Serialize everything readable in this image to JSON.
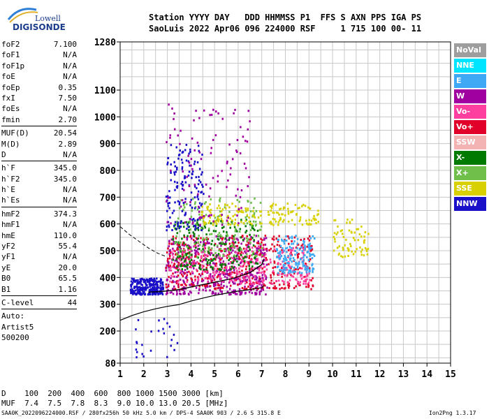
{
  "logo": {
    "line1": "Lowell",
    "line2": "DIGISONDE"
  },
  "header": {
    "labels": [
      "Station",
      "YYYY",
      "DAY",
      "DDD",
      "HHMMSS",
      "P1",
      "FFS",
      "S",
      "AXN",
      "PPS",
      "IGA",
      "PS"
    ],
    "values": [
      "SaoLuis",
      "2022",
      "Apr06",
      "096",
      "224000",
      "RSF",
      "",
      "1",
      "715",
      "100",
      "00-",
      "11"
    ]
  },
  "params": [
    {
      "name": "foF2",
      "value": "7.100"
    },
    {
      "name": "foF1",
      "value": "N/A"
    },
    {
      "name": "foF1p",
      "value": "N/A"
    },
    {
      "name": "foE",
      "value": "N/A"
    },
    {
      "name": "foEp",
      "value": "0.35"
    },
    {
      "name": "fxI",
      "value": "7.50"
    },
    {
      "name": "foEs",
      "value": "N/A"
    },
    {
      "name": "fmin",
      "value": "2.70"
    },
    {
      "sep": true
    },
    {
      "name": "MUF(D)",
      "value": "20.54"
    },
    {
      "name": "M(D)",
      "value": "2.89"
    },
    {
      "name": "D",
      "value": "N/A"
    },
    {
      "sep": true
    },
    {
      "name": "h`F",
      "value": "345.0"
    },
    {
      "name": "h`F2",
      "value": "345.0"
    },
    {
      "name": "h`E",
      "value": "N/A"
    },
    {
      "name": "h`Es",
      "value": "N/A"
    },
    {
      "sep": true
    },
    {
      "name": "hmF2",
      "value": "374.3"
    },
    {
      "name": "hmF1",
      "value": "N/A"
    },
    {
      "name": "hmE",
      "value": "110.0"
    },
    {
      "name": "yF2",
      "value": "55.4"
    },
    {
      "name": "yF1",
      "value": "N/A"
    },
    {
      "name": "yE",
      "value": "20.0"
    },
    {
      "name": "B0",
      "value": "65.5"
    },
    {
      "name": "B1",
      "value": "1.16"
    },
    {
      "sep": true
    },
    {
      "name": "C-level",
      "value": "44"
    },
    {
      "sep": true
    },
    {
      "text": "Auto:"
    },
    {
      "text": "Artist5"
    },
    {
      "text": "500200"
    }
  ],
  "legend": [
    {
      "label": "NoVal",
      "color": "#9e9e9e"
    },
    {
      "label": "NNE",
      "color": "#00e5ff"
    },
    {
      "label": "E",
      "color": "#3fa9f5"
    },
    {
      "label": "W",
      "color": "#a000a0"
    },
    {
      "label": "Vo-",
      "color": "#ff3fa0"
    },
    {
      "label": "Vo+",
      "color": "#e0002a"
    },
    {
      "label": "SSW",
      "color": "#f4b3b3"
    },
    {
      "label": "X-",
      "color": "#007a00"
    },
    {
      "label": "X+",
      "color": "#6fbf4a"
    },
    {
      "label": "SSE",
      "color": "#d8d000"
    },
    {
      "label": "NNW",
      "color": "#1a10c8"
    }
  ],
  "footer": {
    "d_label": "D",
    "d_values": [
      "100",
      "200",
      "400",
      "600",
      "800",
      "1000",
      "1500",
      "3000"
    ],
    "d_unit": "[km]",
    "muf_label": "MUF",
    "muf_values": [
      "7.4",
      "7.5",
      "7.8",
      "8.3",
      "9.0",
      "10.0",
      "13.0",
      "20.5"
    ],
    "muf_unit": "[MHz]",
    "note_left": "SAA0K_2022096224000.RSF / 280fx256h 50 kHz 5.0 km / DPS-4 SAA0K 903 / 2.6 S 315.8 E",
    "note_right": "Ion2Png 1.3.17"
  },
  "chart_data": {
    "type": "scatter",
    "xlabel": "",
    "ylabel": "",
    "xlim": [
      1,
      15
    ],
    "ylim": [
      80,
      1280
    ],
    "x_ticks": [
      1,
      2,
      3,
      4,
      5,
      6,
      7,
      8,
      9,
      10,
      11,
      12,
      13,
      14,
      15
    ],
    "y_ticks": [
      80,
      200,
      300,
      400,
      500,
      600,
      700,
      800,
      900,
      1000,
      1100,
      1280
    ],
    "grid": true,
    "clusters": [
      {
        "series": "NNW",
        "x": [
          1.4,
          2.8
        ],
        "y": [
          340,
          400
        ],
        "n": 260
      },
      {
        "series": "W",
        "x": [
          2.9,
          7.2
        ],
        "y": [
          340,
          560
        ],
        "n": 520
      },
      {
        "series": "Vo+",
        "x": [
          2.9,
          9.2
        ],
        "y": [
          360,
          560
        ],
        "n": 420
      },
      {
        "series": "Vo-",
        "x": [
          3.0,
          9.0
        ],
        "y": [
          380,
          520
        ],
        "n": 300
      },
      {
        "series": "X-",
        "x": [
          3.2,
          6.8
        ],
        "y": [
          430,
          620
        ],
        "n": 220
      },
      {
        "series": "X+",
        "x": [
          3.2,
          7.0
        ],
        "y": [
          480,
          700
        ],
        "n": 160
      },
      {
        "series": "SSE",
        "x": [
          4.4,
          9.4
        ],
        "y": [
          600,
          680
        ],
        "n": 180
      },
      {
        "series": "E",
        "x": [
          7.6,
          9.2
        ],
        "y": [
          420,
          560
        ],
        "n": 160
      },
      {
        "series": "NNW",
        "x": [
          2.9,
          4.5
        ],
        "y": [
          580,
          900
        ],
        "n": 150
      },
      {
        "series": "W",
        "x": [
          2.9,
          6.5
        ],
        "y": [
          600,
          1050
        ],
        "n": 110
      },
      {
        "series": "SSE",
        "x": [
          10.0,
          11.5
        ],
        "y": [
          480,
          620
        ],
        "n": 70
      },
      {
        "series": "NNW",
        "x": [
          1.6,
          3.6
        ],
        "y": [
          90,
          250
        ],
        "n": 25
      }
    ],
    "profile_solid": {
      "x": [
        1.0,
        1.5,
        2.0,
        2.5,
        3.0,
        3.5,
        4.0,
        4.5,
        5.0,
        5.5,
        6.0,
        6.5,
        7.0,
        7.1
      ],
      "y": [
        240,
        258,
        272,
        283,
        292,
        299,
        312,
        323,
        333,
        341,
        349,
        355,
        362,
        370
      ]
    },
    "profile_upper": {
      "x": [
        2.2,
        2.8,
        3.5,
        4.2,
        5.0,
        5.8,
        6.5,
        7.0,
        7.1
      ],
      "y": [
        345,
        348,
        355,
        368,
        382,
        397,
        418,
        448,
        470
      ]
    },
    "profile_dashed": {
      "x": [
        1.0,
        1.4,
        1.8,
        2.2,
        2.6,
        2.9
      ],
      "y": [
        590,
        560,
        535,
        510,
        490,
        480
      ]
    }
  }
}
